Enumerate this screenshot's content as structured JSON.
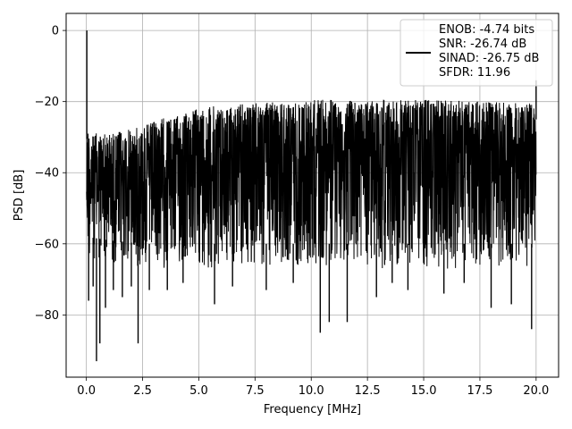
{
  "chart_data": {
    "type": "line",
    "xlabel": "Frequency [MHz]",
    "ylabel": "PSD [dB]",
    "xlim": [
      -0.9,
      21.0
    ],
    "ylim": [
      -97.5,
      4.8
    ],
    "xticks": [
      0.0,
      2.5,
      5.0,
      7.5,
      10.0,
      12.5,
      15.0,
      17.5,
      20.0
    ],
    "xtick_labels": [
      "0.0",
      "2.5",
      "5.0",
      "7.5",
      "10.0",
      "12.5",
      "15.0",
      "17.5",
      "20.0"
    ],
    "yticks": [
      0,
      -20,
      -40,
      -60,
      -80
    ],
    "ytick_labels": [
      "0",
      "−20",
      "−40",
      "−60",
      "−80"
    ],
    "grid": true,
    "legend_position": "top-right",
    "series": [
      {
        "name": "ENOB: -4.74 bits\nSNR: -26.74 dB\nSINAD: -26.75 dB\nSFDR: 11.96",
        "color": "#000000",
        "upper_envelope": {
          "x": [
            0.0,
            0.1,
            0.5,
            1.0,
            1.5,
            2.5,
            3.5,
            5.0,
            6.0,
            7.5,
            9.0,
            10.0,
            12.5,
            15.0,
            17.5,
            19.5,
            20.0
          ],
          "y": [
            -26,
            -28.5,
            -29,
            -29,
            -28.5,
            -27,
            -24.5,
            -22,
            -21,
            -20.5,
            -20,
            -19.5,
            -19.5,
            -19.5,
            -20,
            -20.5,
            -21
          ]
        },
        "lower_envelope": {
          "x": [
            0.0,
            1.0,
            2.5,
            5.0,
            7.5,
            10.0,
            12.5,
            15.0,
            17.5,
            20.0
          ],
          "y": [
            -64,
            -65,
            -66,
            -66,
            -66,
            -66,
            -66,
            -66,
            -66,
            -66
          ]
        },
        "spikes": [
          {
            "x": 0.02,
            "y": 0.0
          },
          {
            "x": 20.0,
            "y": -14.0
          },
          {
            "x": 0.1,
            "y": -76
          },
          {
            "x": 0.3,
            "y": -72
          },
          {
            "x": 0.45,
            "y": -93
          },
          {
            "x": 0.6,
            "y": -88
          },
          {
            "x": 0.85,
            "y": -78
          },
          {
            "x": 1.2,
            "y": -73
          },
          {
            "x": 1.6,
            "y": -75
          },
          {
            "x": 2.0,
            "y": -72
          },
          {
            "x": 2.3,
            "y": -88
          },
          {
            "x": 2.8,
            "y": -73
          },
          {
            "x": 3.6,
            "y": -73
          },
          {
            "x": 4.3,
            "y": -71
          },
          {
            "x": 5.7,
            "y": -77
          },
          {
            "x": 6.5,
            "y": -72
          },
          {
            "x": 8.0,
            "y": -73
          },
          {
            "x": 9.2,
            "y": -71
          },
          {
            "x": 10.4,
            "y": -85
          },
          {
            "x": 10.8,
            "y": -82
          },
          {
            "x": 11.6,
            "y": -82
          },
          {
            "x": 12.9,
            "y": -75
          },
          {
            "x": 13.6,
            "y": -71
          },
          {
            "x": 14.3,
            "y": -73
          },
          {
            "x": 15.9,
            "y": -74
          },
          {
            "x": 16.8,
            "y": -71
          },
          {
            "x": 18.0,
            "y": -78
          },
          {
            "x": 18.9,
            "y": -77
          },
          {
            "x": 19.8,
            "y": -84
          }
        ]
      }
    ]
  }
}
